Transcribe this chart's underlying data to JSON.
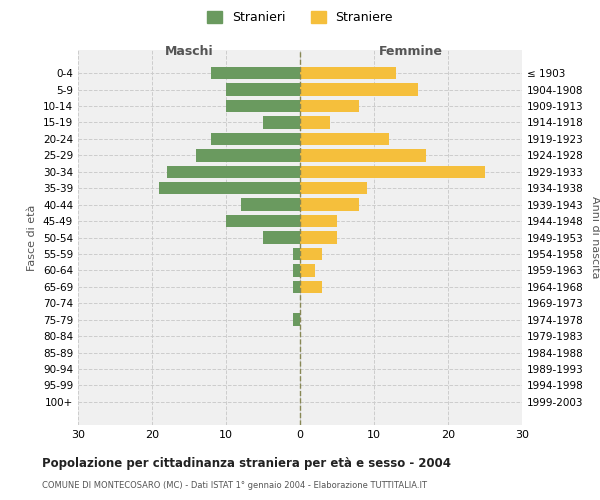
{
  "age_groups": [
    "0-4",
    "5-9",
    "10-14",
    "15-19",
    "20-24",
    "25-29",
    "30-34",
    "35-39",
    "40-44",
    "45-49",
    "50-54",
    "55-59",
    "60-64",
    "65-69",
    "70-74",
    "75-79",
    "80-84",
    "85-89",
    "90-94",
    "95-99",
    "100+"
  ],
  "birth_years": [
    "1999-2003",
    "1994-1998",
    "1989-1993",
    "1984-1988",
    "1979-1983",
    "1974-1978",
    "1969-1973",
    "1964-1968",
    "1959-1963",
    "1954-1958",
    "1949-1953",
    "1944-1948",
    "1939-1943",
    "1934-1938",
    "1929-1933",
    "1924-1928",
    "1919-1923",
    "1914-1918",
    "1909-1913",
    "1904-1908",
    "≤ 1903"
  ],
  "males": [
    12,
    10,
    10,
    5,
    12,
    14,
    18,
    19,
    8,
    10,
    5,
    1,
    1,
    1,
    0,
    1,
    0,
    0,
    0,
    0,
    0
  ],
  "females": [
    13,
    16,
    8,
    4,
    12,
    17,
    25,
    9,
    8,
    5,
    5,
    3,
    2,
    3,
    0,
    0,
    0,
    0,
    0,
    0,
    0
  ],
  "male_color": "#6a9a5f",
  "female_color": "#f5bf3c",
  "background_color": "#f0f0f0",
  "grid_color": "#cccccc",
  "title": "Popolazione per cittadinanza straniera per età e sesso - 2004",
  "subtitle": "COMUNE DI MONTECOSARO (MC) - Dati ISTAT 1° gennaio 2004 - Elaborazione TUTTITALIA.IT",
  "ylabel": "Fasce di età",
  "ylabel_right": "Anni di nascita",
  "xlabel_left": "Maschi",
  "xlabel_right": "Femmine",
  "legend_male": "Stranieri",
  "legend_female": "Straniere",
  "xlim": 30
}
